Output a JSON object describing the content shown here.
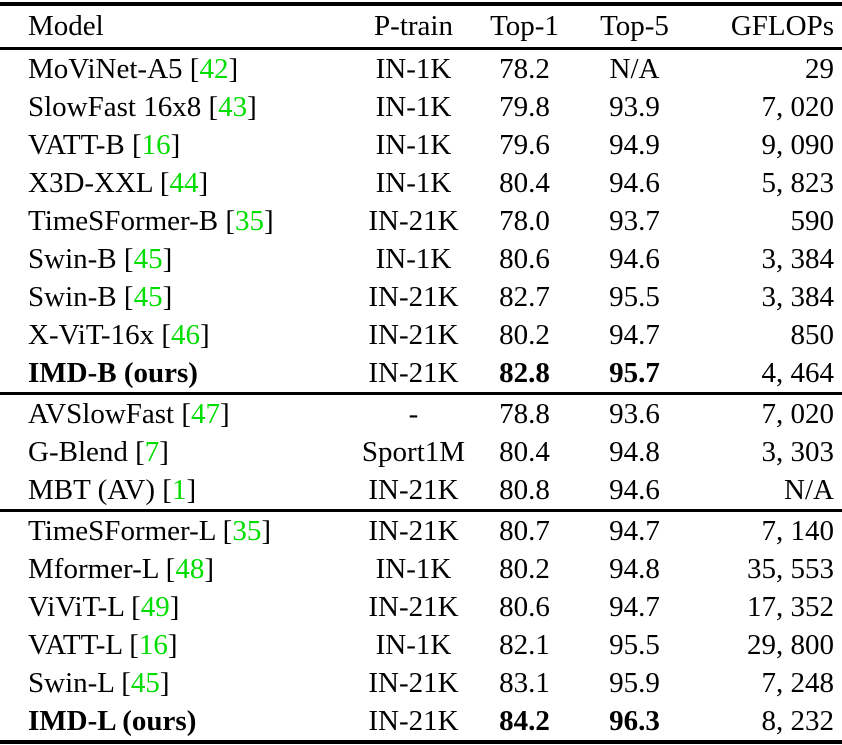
{
  "colors": {
    "citation": "#00dd00",
    "text": "#000000",
    "background": "#ffffff"
  },
  "table": {
    "headers": {
      "model": "Model",
      "ptrain": "P-train",
      "top1": "Top-1",
      "top5": "Top-5",
      "gflops": "GFLOPs"
    },
    "sections": [
      {
        "rows": [
          {
            "model": "MoViNet-A5",
            "cite": "42",
            "ptrain": "IN-1K",
            "top1": "78.2",
            "top5": "N/A",
            "gflops": "29",
            "bold": false
          },
          {
            "model": "SlowFast 16x8",
            "cite": "43",
            "ptrain": "IN-1K",
            "top1": "79.8",
            "top5": "93.9",
            "gflops": "7, 020",
            "bold": false
          },
          {
            "model": "VATT-B",
            "cite": "16",
            "ptrain": "IN-1K",
            "top1": "79.6",
            "top5": "94.9",
            "gflops": "9, 090",
            "bold": false
          },
          {
            "model": "X3D-XXL",
            "cite": "44",
            "ptrain": "IN-1K",
            "top1": "80.4",
            "top5": "94.6",
            "gflops": "5, 823",
            "bold": false
          },
          {
            "model": "TimeSFormer-B",
            "cite": "35",
            "ptrain": "IN-21K",
            "top1": "78.0",
            "top5": "93.7",
            "gflops": "590",
            "bold": false
          },
          {
            "model": "Swin-B",
            "cite": "45",
            "ptrain": "IN-1K",
            "top1": "80.6",
            "top5": "94.6",
            "gflops": "3, 384",
            "bold": false
          },
          {
            "model": "Swin-B",
            "cite": "45",
            "ptrain": "IN-21K",
            "top1": "82.7",
            "top5": "95.5",
            "gflops": "3, 384",
            "bold": false
          },
          {
            "model": "X-ViT-16x",
            "cite": "46",
            "ptrain": "IN-21K",
            "top1": "80.2",
            "top5": "94.7",
            "gflops": "850",
            "bold": false
          },
          {
            "model": "IMD-B (ours)",
            "cite": null,
            "ptrain": "IN-21K",
            "top1": "82.8",
            "top5": "95.7",
            "gflops": "4, 464",
            "bold": true
          }
        ]
      },
      {
        "rows": [
          {
            "model": "AVSlowFast",
            "cite": "47",
            "ptrain": "-",
            "top1": "78.8",
            "top5": "93.6",
            "gflops": "7, 020",
            "bold": false
          },
          {
            "model": "G-Blend",
            "cite": "7",
            "ptrain": "Sport1M",
            "top1": "80.4",
            "top5": "94.8",
            "gflops": "3, 303",
            "bold": false
          },
          {
            "model": "MBT (AV)",
            "cite": "1",
            "ptrain": "IN-21K",
            "top1": "80.8",
            "top5": "94.6",
            "gflops": "N/A",
            "bold": false
          }
        ]
      },
      {
        "rows": [
          {
            "model": "TimeSFormer-L",
            "cite": "35",
            "ptrain": "IN-21K",
            "top1": "80.7",
            "top5": "94.7",
            "gflops": "7, 140",
            "bold": false
          },
          {
            "model": "Mformer-L",
            "cite": "48",
            "ptrain": "IN-1K",
            "top1": "80.2",
            "top5": "94.8",
            "gflops": "35, 553",
            "bold": false
          },
          {
            "model": "ViViT-L",
            "cite": "49",
            "ptrain": "IN-21K",
            "top1": "80.6",
            "top5": "94.7",
            "gflops": "17, 352",
            "bold": false
          },
          {
            "model": "VATT-L",
            "cite": "16",
            "ptrain": "IN-1K",
            "top1": "82.1",
            "top5": "95.5",
            "gflops": "29, 800",
            "bold": false
          },
          {
            "model": "Swin-L",
            "cite": "45",
            "ptrain": "IN-21K",
            "top1": "83.1",
            "top5": "95.9",
            "gflops": "7, 248",
            "bold": false
          },
          {
            "model": "IMD-L (ours)",
            "cite": null,
            "ptrain": "IN-21K",
            "top1": "84.2",
            "top5": "96.3",
            "gflops": "8, 232",
            "bold": true
          }
        ]
      }
    ]
  }
}
